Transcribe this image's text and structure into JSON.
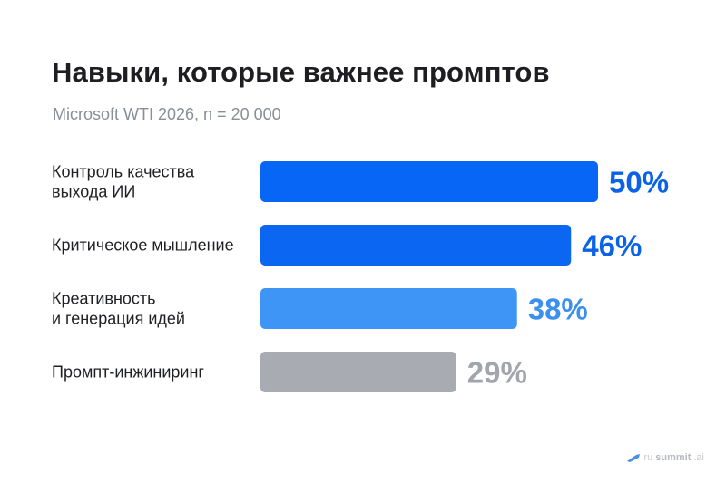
{
  "title": "Навыки, которые важнее промптов",
  "subtitle": "Microsoft WTI 2026, n = 20 000",
  "watermark": {
    "prefix": "ru",
    "brand": "summit",
    "suffix": ".ai",
    "icon": "rocket-icon"
  },
  "chart_data": {
    "type": "bar",
    "orientation": "horizontal",
    "categories": [
      [
        "Контроль качества",
        "выхода ИИ"
      ],
      [
        "Критическое мышление"
      ],
      [
        "Креативность",
        "и генерация идей"
      ],
      [
        "Промпт-инжиниринг"
      ]
    ],
    "values": [
      50,
      46,
      38,
      29
    ],
    "value_labels": [
      "50%",
      "46%",
      "38%",
      "29%"
    ],
    "bar_colors": [
      "#0866f6",
      "#0b66f2",
      "#3f95f5",
      "#a9abb2"
    ],
    "label_colors": [
      "#0a63e6",
      "#0a63e6",
      "#3a8fef",
      "#a2a5ab"
    ],
    "xlim": [
      0,
      50
    ],
    "grid": false,
    "legend": false
  }
}
